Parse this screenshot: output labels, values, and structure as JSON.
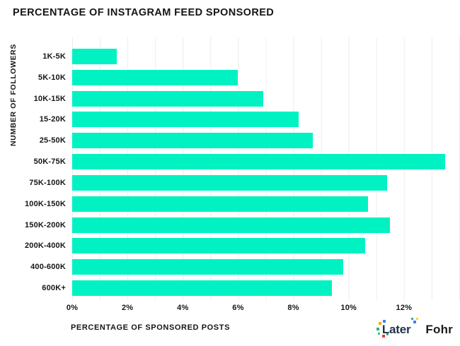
{
  "title": "PERCENTAGE OF INSTAGRAM FEED SPONSORED",
  "y_axis_label": "NUMBER OF FOLLOWERS",
  "x_axis_label": "PERCENTAGE OF SPONSORED POSTS",
  "footer": {
    "later_label": "Later",
    "fohr_label": "Fohr"
  },
  "colors": {
    "bar": "#00F2C3",
    "grid": "#ededed",
    "text": "#161616",
    "later": "#1E3148",
    "fohr": "#1C1C1C",
    "logo_dot_orange": "#F5A623",
    "logo_dot_blue": "#3B82F6",
    "logo_dot_green": "#2BB673",
    "logo_dot_teal": "#27C4A8",
    "logo_dot_red": "#E23B3B",
    "logo_dot_yellow": "#F7D633"
  },
  "chart_data": {
    "type": "bar",
    "orientation": "horizontal",
    "title": "PERCENTAGE OF INSTAGRAM FEED SPONSORED",
    "xlabel": "PERCENTAGE OF SPONSORED POSTS",
    "ylabel": "NUMBER OF FOLLOWERS",
    "categories": [
      "1K-5K",
      "5K-10K",
      "10K-15K",
      "15-20K",
      "25-50K",
      "50K-75K",
      "75K-100K",
      "100K-150K",
      "150K-200K",
      "200K-400K",
      "400-600K",
      "600K+"
    ],
    "values": [
      1.6,
      6.0,
      6.9,
      8.2,
      8.7,
      13.5,
      11.4,
      10.7,
      11.5,
      10.6,
      9.8,
      9.4
    ],
    "value_unit": "%",
    "xlim": [
      0,
      14
    ],
    "x_ticks": [
      {
        "label": "0%",
        "value": 0
      },
      {
        "label": "2%",
        "value": 2
      },
      {
        "label": "4%",
        "value": 4
      },
      {
        "label": "6%",
        "value": 6
      },
      {
        "label": "8%",
        "value": 8
      },
      {
        "label": "10%",
        "value": 10
      },
      {
        "label": "12%",
        "value": 12
      }
    ],
    "gridline_step": 1,
    "grid": true,
    "legend": false
  }
}
